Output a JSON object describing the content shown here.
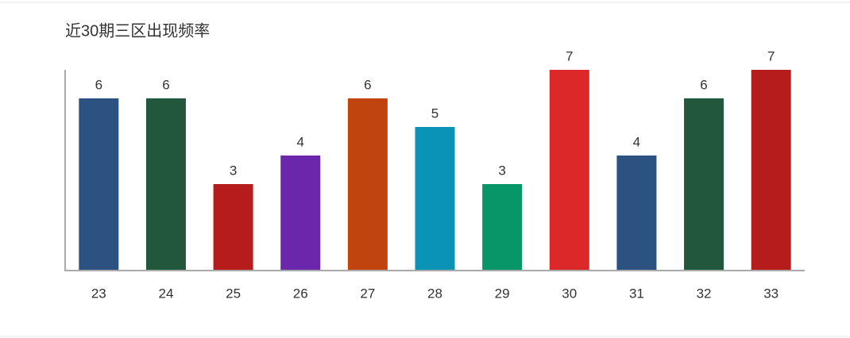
{
  "chart_data": {
    "type": "bar",
    "title": "近30期三区出现频率",
    "categories": [
      "23",
      "24",
      "25",
      "26",
      "27",
      "28",
      "29",
      "30",
      "31",
      "32",
      "33"
    ],
    "values": [
      6,
      6,
      3,
      4,
      6,
      5,
      3,
      7,
      4,
      6,
      7
    ],
    "colors": [
      "#2b5280",
      "#22573c",
      "#b71c1c",
      "#6a27ab",
      "#c1440e",
      "#0a93b6",
      "#069668",
      "#dc2828",
      "#2b5280",
      "#22573c",
      "#b71c1c"
    ],
    "ylim": [
      0,
      7
    ],
    "grid": false
  }
}
